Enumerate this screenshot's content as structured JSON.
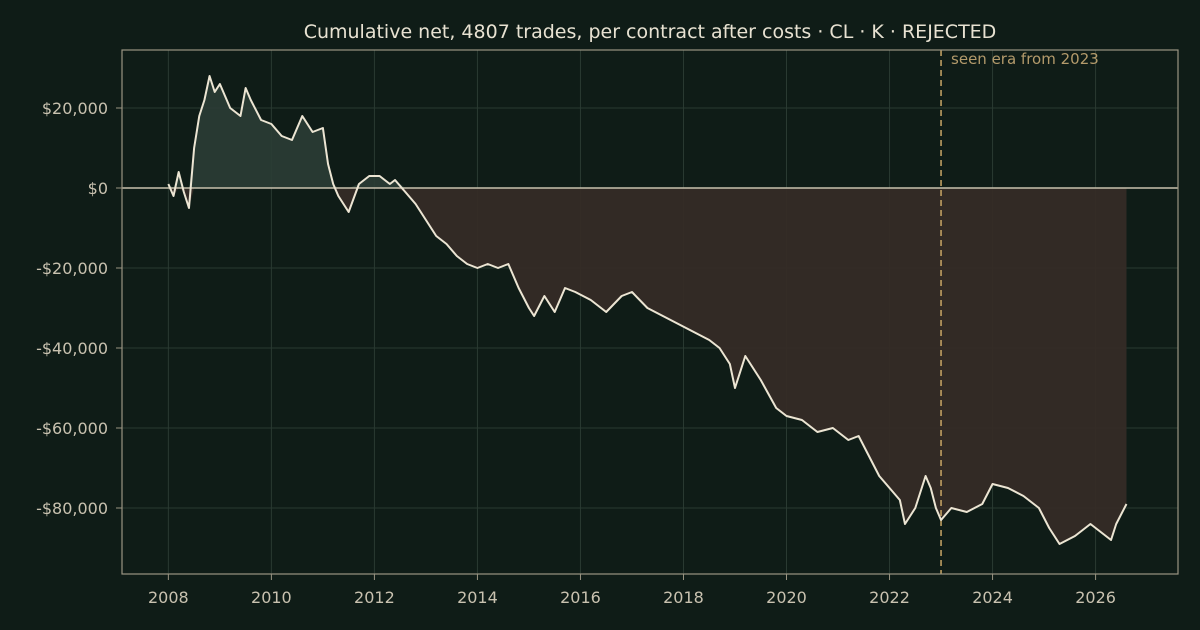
{
  "chart_data": {
    "type": "area",
    "title": "Cumulative net, 4807 trades, per contract after costs  ·  CL · K · REJECTED",
    "xlabel": "",
    "ylabel": "",
    "xlim": [
      2007.1,
      2027.6
    ],
    "ylim": [
      -96500,
      34500
    ],
    "x_ticks": [
      2008,
      2010,
      2012,
      2014,
      2016,
      2018,
      2020,
      2022,
      2024,
      2026
    ],
    "x_tick_labels": [
      "2008",
      "2010",
      "2012",
      "2014",
      "2016",
      "2018",
      "2020",
      "2022",
      "2024",
      "2026"
    ],
    "y_ticks": [
      20000,
      0,
      -20000,
      -40000,
      -60000,
      -80000
    ],
    "y_tick_labels": [
      "$20,000",
      "$0",
      "-$20,000",
      "-$40,000",
      "-$60,000",
      "-$80,000"
    ],
    "grid": true,
    "annotations": [
      {
        "x": 2023.0,
        "text": "seen era from 2023",
        "style": "vertical-dashed-line"
      }
    ],
    "series": [
      {
        "x": [
          2008.0,
          2008.1,
          2008.2,
          2008.3,
          2008.4,
          2008.5,
          2008.6,
          2008.7,
          2008.8,
          2008.9,
          2009.0,
          2009.2,
          2009.4,
          2009.5,
          2009.6,
          2009.8,
          2010.0,
          2010.2,
          2010.4,
          2010.6,
          2010.8,
          2011.0,
          2011.1,
          2011.2,
          2011.3,
          2011.5,
          2011.7,
          2011.9,
          2012.1,
          2012.3,
          2012.4,
          2012.6,
          2012.8,
          2013.0,
          2013.2,
          2013.4,
          2013.6,
          2013.8,
          2014.0,
          2014.2,
          2014.4,
          2014.6,
          2014.8,
          2015.0,
          2015.1,
          2015.3,
          2015.5,
          2015.7,
          2015.9,
          2016.2,
          2016.5,
          2016.8,
          2017.0,
          2017.3,
          2017.6,
          2017.9,
          2018.2,
          2018.5,
          2018.7,
          2018.9,
          2019.0,
          2019.2,
          2019.5,
          2019.8,
          2020.0,
          2020.3,
          2020.6,
          2020.9,
          2021.2,
          2021.4,
          2021.6,
          2021.8,
          2022.0,
          2022.2,
          2022.3,
          2022.5,
          2022.7,
          2022.8,
          2022.9,
          2023.0,
          2023.2,
          2023.5,
          2023.8,
          2024.0,
          2024.3,
          2024.6,
          2024.9,
          2025.1,
          2025.3,
          2025.6,
          2025.9,
          2026.1,
          2026.3,
          2026.4,
          2026.6
        ],
        "values": [
          1000,
          -2000,
          4000,
          -1000,
          -5000,
          10000,
          18000,
          22000,
          28000,
          24000,
          26000,
          20000,
          18000,
          25000,
          22000,
          17000,
          16000,
          13000,
          12000,
          18000,
          14000,
          15000,
          6000,
          1000,
          -2000,
          -6000,
          1000,
          3000,
          3000,
          1000,
          2000,
          -1000,
          -4000,
          -8000,
          -12000,
          -14000,
          -17000,
          -19000,
          -20000,
          -19000,
          -20000,
          -19000,
          -25000,
          -30000,
          -32000,
          -27000,
          -31000,
          -25000,
          -26000,
          -28000,
          -31000,
          -27000,
          -26000,
          -30000,
          -32000,
          -34000,
          -36000,
          -38000,
          -40000,
          -44000,
          -50000,
          -42000,
          -48000,
          -55000,
          -57000,
          -58000,
          -61000,
          -60000,
          -63000,
          -62000,
          -67000,
          -72000,
          -75000,
          -78000,
          -84000,
          -80000,
          -72000,
          -75000,
          -80000,
          -83000,
          -80000,
          -81000,
          -79000,
          -74000,
          -75000,
          -77000,
          -80000,
          -85000,
          -89000,
          -87000,
          -84000,
          -86000,
          -88000,
          -84000,
          -79000
        ]
      }
    ]
  }
}
